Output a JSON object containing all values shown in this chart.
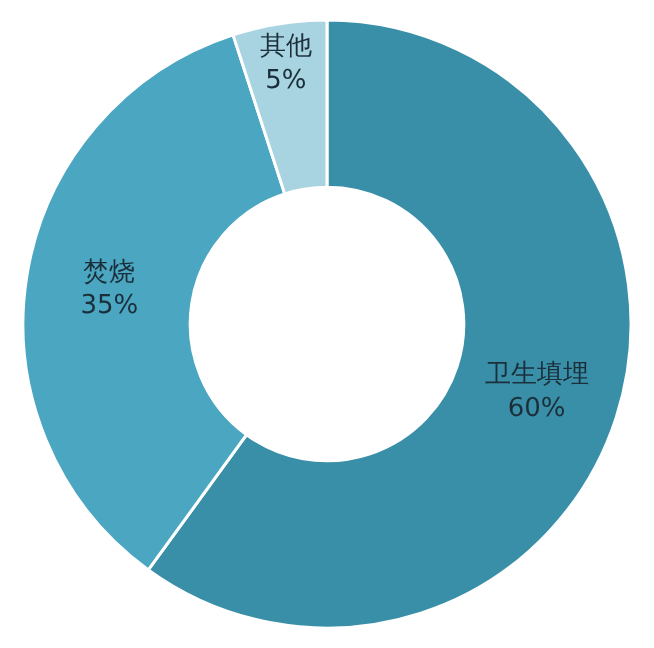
{
  "chart_data": {
    "type": "donut",
    "categories": [
      "卫生填埋",
      "焚烧",
      "其他"
    ],
    "values": [
      60,
      35,
      5
    ],
    "value_labels": [
      "60%",
      "35%",
      "5%"
    ],
    "colors": [
      "#3a8fa8",
      "#4aa6c1",
      "#a8d3e0"
    ],
    "legend": false
  }
}
